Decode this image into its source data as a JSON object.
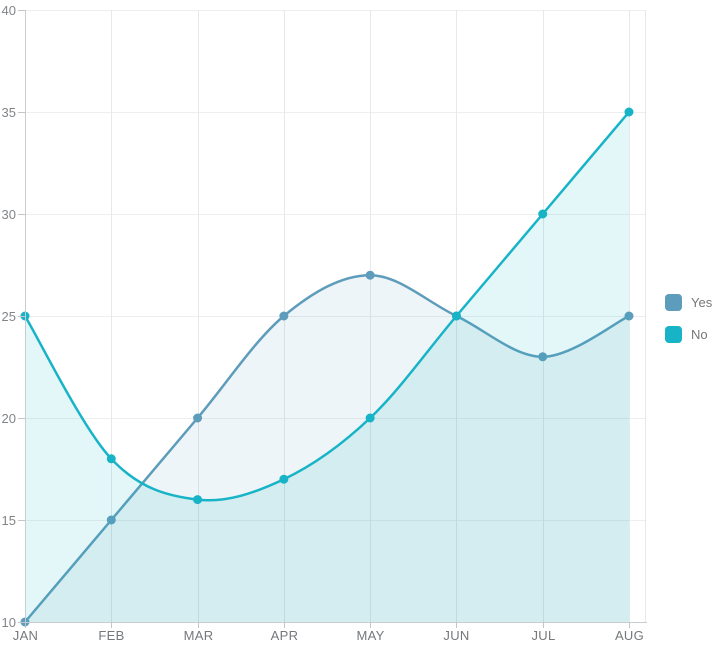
{
  "chart_data": {
    "type": "area",
    "subtype": "spline-area",
    "title": "",
    "xlabel": "",
    "ylabel": "",
    "categories": [
      "JAN",
      "FEB",
      "MAR",
      "APR",
      "MAY",
      "JUN",
      "JUL",
      "AUG"
    ],
    "series": [
      {
        "name": "Yes",
        "values": [
          10,
          15,
          20,
          25,
          27,
          25,
          23,
          25
        ],
        "color": "#5d9cba",
        "fill_alpha": 0.1
      },
      {
        "name": "No",
        "values": [
          25,
          18,
          16,
          17,
          20,
          25,
          30,
          35
        ],
        "color": "#17b3c7",
        "fill_alpha": 0.12
      }
    ],
    "ylim": [
      10,
      40
    ],
    "yticks": [
      10,
      15,
      20,
      25,
      30,
      35,
      40
    ],
    "grid": true,
    "legend_position": "right",
    "marker": "circle"
  },
  "legend": {
    "items": [
      {
        "label": "Yes",
        "color": "#5d9cba"
      },
      {
        "label": "No",
        "color": "#17b3c7"
      }
    ]
  },
  "style_colors": {
    "background": "#ffffff",
    "axis_line": "#c9cdcf",
    "tick": "#c2c6c8",
    "vertical_gridline": "#e6e9e9",
    "horizontal_gridline": "#eeeeee",
    "axis_label": "#828588"
  }
}
